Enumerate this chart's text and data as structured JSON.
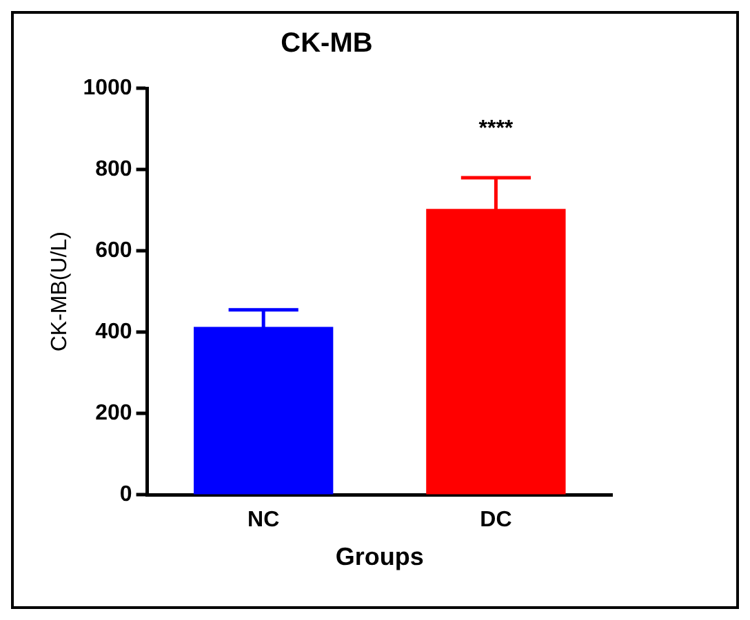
{
  "chart_data": {
    "type": "bar",
    "title": "CK-MB",
    "xlabel": "Groups",
    "ylabel": "CK-MB(U/L)",
    "categories": [
      "NC",
      "DC"
    ],
    "values": [
      413,
      703
    ],
    "colors": [
      "#0000ff",
      "#ff0000"
    ],
    "errors": [
      42,
      77
    ],
    "ylim": [
      0,
      1000
    ],
    "yticks": [
      0,
      200,
      400,
      600,
      800,
      1000
    ],
    "grid": false,
    "legend": false,
    "annotations": [
      "****"
    ]
  }
}
